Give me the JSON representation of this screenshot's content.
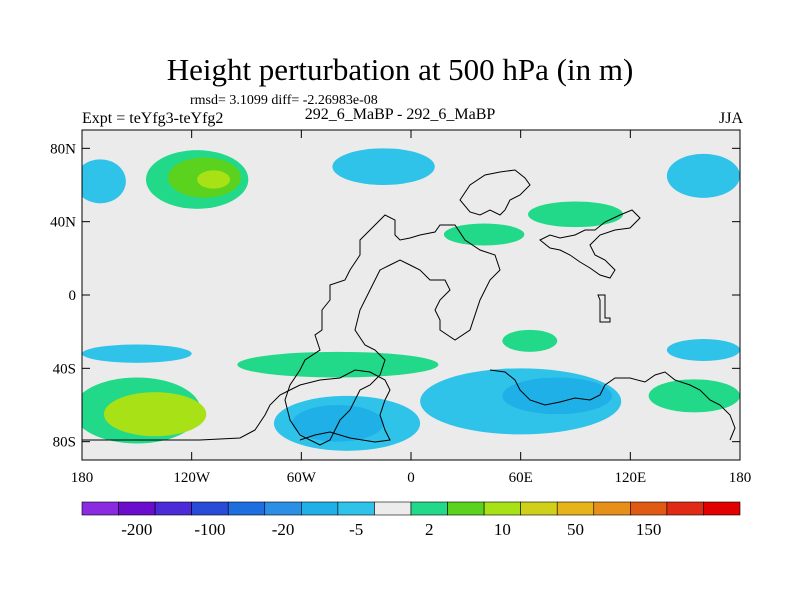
{
  "title": "Height perturbation at 500 hPa (in m)",
  "stats": "rmsd= 3.1099 diff= -2.26983e-08",
  "experiment": "Expt = teYfg3-teYfg2",
  "subtitle": "292_6_MaBP - 292_6_MaBP",
  "season": "JJA",
  "colors": {
    "background_zero": "#ebebeb",
    "land_outline": "#000000",
    "frame": "#000000"
  },
  "axes": {
    "lat_ticks": [
      {
        "value": 80,
        "label": "80N"
      },
      {
        "value": 40,
        "label": "40N"
      },
      {
        "value": 0,
        "label": "0"
      },
      {
        "value": -40,
        "label": "40S"
      },
      {
        "value": -80,
        "label": "80S"
      }
    ],
    "lon_ticks": [
      {
        "value": -180,
        "label": "180"
      },
      {
        "value": -120,
        "label": "120W"
      },
      {
        "value": -60,
        "label": "60W"
      },
      {
        "value": 0,
        "label": "0"
      },
      {
        "value": 60,
        "label": "60E"
      },
      {
        "value": 120,
        "label": "120E"
      },
      {
        "value": 180,
        "label": "180"
      }
    ],
    "lon_range": [
      -180,
      180
    ],
    "lat_range": [
      -90,
      90
    ]
  },
  "colorbar": {
    "colors": [
      "#8a2be2",
      "#6a0dcc",
      "#4b2ad8",
      "#2a4bd7",
      "#1e6ee0",
      "#2c8fe6",
      "#1fb0e8",
      "#2fc3ea",
      "#ececec",
      "#22d98a",
      "#5ad21e",
      "#a7e116",
      "#d0d01a",
      "#e6b41a",
      "#e6901a",
      "#e05a14",
      "#e02a14",
      "#e00000"
    ],
    "labels": [
      {
        "text": "-200",
        "index": 1
      },
      {
        "text": "-100",
        "index": 3
      },
      {
        "text": "-20",
        "index": 5
      },
      {
        "text": "-5",
        "index": 7
      },
      {
        "text": "2",
        "index": 9
      },
      {
        "text": "10",
        "index": 11
      },
      {
        "text": "50",
        "index": 13
      },
      {
        "text": "150",
        "index": 15
      }
    ]
  },
  "anomaly_regions": [
    {
      "name": "n-pacific-negative",
      "color": "#2fc3ea",
      "lon": -170,
      "lat": 62,
      "rlon": 14,
      "rlat": 12
    },
    {
      "name": "n-america-positive-outer",
      "color": "#22d98a",
      "lon": -117,
      "lat": 63,
      "rlon": 28,
      "rlat": 16
    },
    {
      "name": "n-america-positive-inner",
      "color": "#5ad21e",
      "lon": -113,
      "lat": 64,
      "rlon": 20,
      "rlat": 11
    },
    {
      "name": "n-america-positive-core",
      "color": "#a7e116",
      "lon": -108,
      "lat": 63,
      "rlon": 9,
      "rlat": 5
    },
    {
      "name": "n-atlantic-negative",
      "color": "#2fc3ea",
      "lon": -15,
      "lat": 70,
      "rlon": 28,
      "rlat": 10
    },
    {
      "name": "europe-positive",
      "color": "#22d98a",
      "lon": 40,
      "lat": 33,
      "rlon": 22,
      "rlat": 6
    },
    {
      "name": "e-asia-positive",
      "color": "#22d98a",
      "lon": 90,
      "lat": 44,
      "rlon": 26,
      "rlat": 7
    },
    {
      "name": "nw-pacific-negative",
      "color": "#2fc3ea",
      "lon": 160,
      "lat": 65,
      "rlon": 20,
      "rlat": 12
    },
    {
      "name": "s-pacific-positive-outer",
      "color": "#22d98a",
      "lon": -150,
      "lat": -63,
      "rlon": 35,
      "rlat": 18
    },
    {
      "name": "s-pacific-positive-inner",
      "color": "#a7e116",
      "lon": -140,
      "lat": -65,
      "rlon": 28,
      "rlat": 12
    },
    {
      "name": "s-pacific-negative-band",
      "color": "#2fc3ea",
      "lon": -150,
      "lat": -32,
      "rlon": 30,
      "rlat": 5
    },
    {
      "name": "s-america-positive-band",
      "color": "#22d98a",
      "lon": -40,
      "lat": -38,
      "rlon": 55,
      "rlat": 7
    },
    {
      "name": "s-atlantic-negative-outer",
      "color": "#2fc3ea",
      "lon": -35,
      "lat": -70,
      "rlon": 40,
      "rlat": 15
    },
    {
      "name": "s-atlantic-negative-inner",
      "color": "#1fb0e8",
      "lon": -40,
      "lat": -70,
      "rlon": 25,
      "rlat": 10
    },
    {
      "name": "s-indian-negative-outer",
      "color": "#2fc3ea",
      "lon": 60,
      "lat": -58,
      "rlon": 55,
      "rlat": 18
    },
    {
      "name": "s-indian-negative-inner",
      "color": "#1fb0e8",
      "lon": 80,
      "lat": -55,
      "rlon": 30,
      "rlat": 10
    },
    {
      "name": "indian-positive-band",
      "color": "#22d98a",
      "lon": 65,
      "lat": -25,
      "rlon": 15,
      "rlat": 6
    },
    {
      "name": "australia-positive",
      "color": "#22d98a",
      "lon": 155,
      "lat": -55,
      "rlon": 25,
      "rlat": 9
    },
    {
      "name": "sw-pacific-negative",
      "color": "#2fc3ea",
      "lon": 160,
      "lat": -30,
      "rlon": 20,
      "rlat": 6
    }
  ]
}
